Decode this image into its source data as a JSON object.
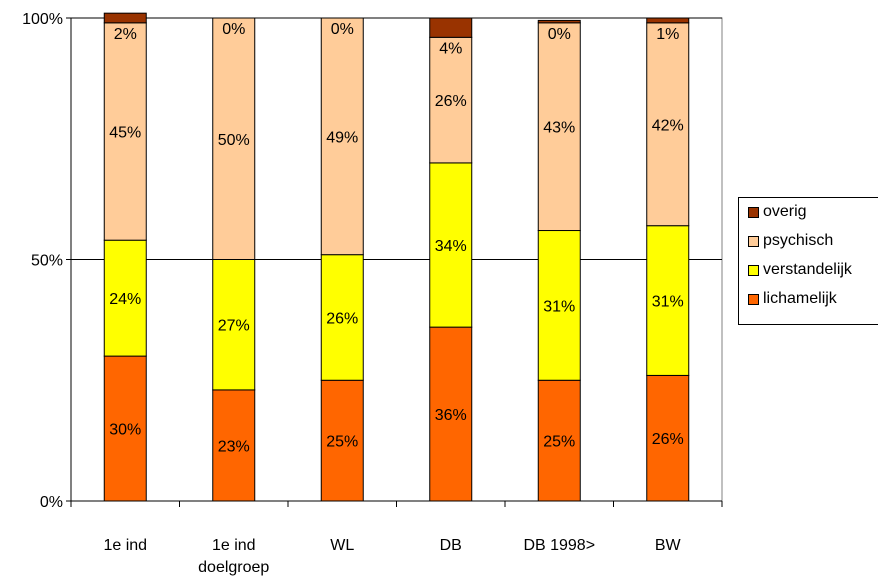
{
  "chart_data": {
    "type": "bar",
    "stacked": true,
    "categories": [
      [
        "1e ind"
      ],
      [
        "1e ind",
        "doelgroep"
      ],
      [
        "WL"
      ],
      [
        "DB"
      ],
      [
        "DB 1998>"
      ],
      [
        "BW"
      ]
    ],
    "series": [
      {
        "name": "lichamelijk",
        "color": "#FF6600",
        "values": [
          30,
          23,
          25,
          36,
          25,
          26
        ],
        "labels": [
          "30%",
          "23%",
          "25%",
          "36%",
          "25%",
          "26%"
        ]
      },
      {
        "name": "verstandelijk",
        "color": "#FFFF00",
        "values": [
          24,
          27,
          26,
          34,
          31,
          31
        ],
        "labels": [
          "24%",
          "27%",
          "26%",
          "34%",
          "31%",
          "31%"
        ]
      },
      {
        "name": "psychisch",
        "color": "#FFCC99",
        "values": [
          45,
          50,
          49,
          26,
          43,
          42
        ],
        "labels": [
          "45%",
          "50%",
          "49%",
          "26%",
          "43%",
          "42%"
        ]
      },
      {
        "name": "overig",
        "color": "#993300",
        "values": [
          2,
          0,
          0,
          4,
          0.5,
          1
        ],
        "labels": [
          "2%",
          "0%",
          "0%",
          "4%",
          "0%",
          "1%"
        ]
      }
    ],
    "y_ticks": [
      "0%",
      "50%",
      "100%"
    ],
    "ylim": [
      0,
      100
    ],
    "grid": true,
    "legend_position": "right",
    "legend_order": [
      "overig",
      "psychisch",
      "verstandelijk",
      "lichamelijk"
    ]
  }
}
